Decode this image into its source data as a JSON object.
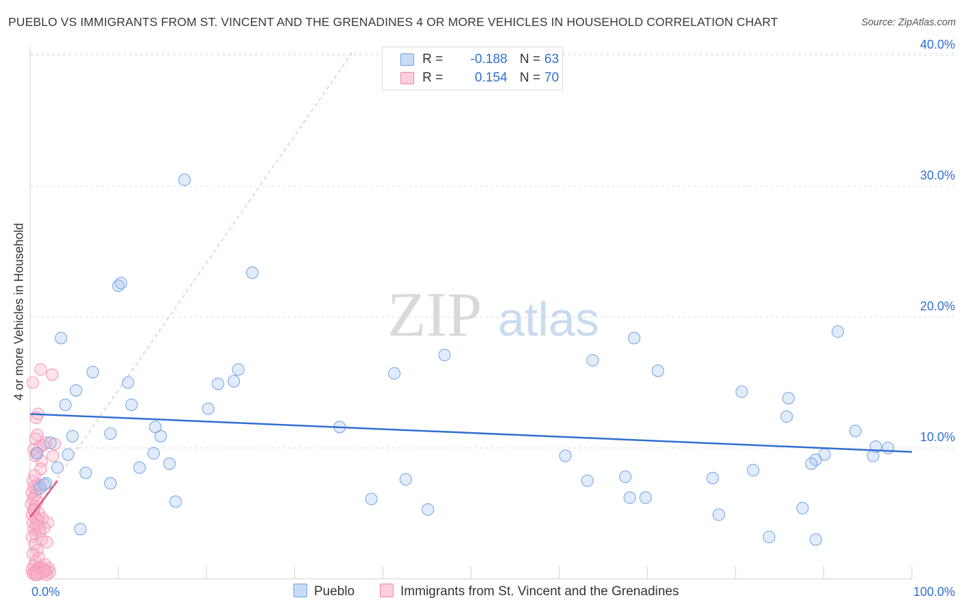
{
  "title": "PUEBLO VS IMMIGRANTS FROM ST. VINCENT AND THE GRENADINES 4 OR MORE VEHICLES IN HOUSEHOLD CORRELATION CHART",
  "source": "Source: ZipAtlas.com",
  "watermark": {
    "zip": "ZIP",
    "atlas": "atlas"
  },
  "legend": {
    "rows": [
      {
        "r_label": "R =",
        "r_value": "-0.188",
        "n_label": "N =",
        "n_value": "63",
        "color": "#6a9fe0"
      },
      {
        "r_label": "R =",
        "r_value": "0.154",
        "n_label": "N =",
        "n_value": "70",
        "color": "#f080a8"
      }
    ]
  },
  "bottom_legend": {
    "series1": "Pueblo",
    "series2": "Immigrants from St. Vincent and the Grenadines"
  },
  "chart_data": {
    "type": "scatter",
    "ylabel": "4 or more Vehicles in Household",
    "xlabel": "",
    "xlim": [
      0,
      100
    ],
    "ylim": [
      0,
      40
    ],
    "x_tick_labels": [
      "0.0%",
      "100.0%"
    ],
    "y_tick_labels": [
      "10.0%",
      "20.0%",
      "30.0%",
      "40.0%"
    ],
    "y_ticks": [
      10,
      20,
      30,
      40
    ],
    "series": [
      {
        "name": "Pueblo",
        "color": "#6a9fe0",
        "trend": {
          "x": [
            0,
            100
          ],
          "y": [
            12.6,
            9.7
          ],
          "color": "#2f6fd0"
        },
        "points": [
          [
            17.5,
            30.5
          ],
          [
            25.2,
            23.4
          ],
          [
            10,
            22.4
          ],
          [
            10.3,
            22.6
          ],
          [
            3.5,
            18.4
          ],
          [
            47,
            17.1
          ],
          [
            68.5,
            18.4
          ],
          [
            91.6,
            18.9
          ],
          [
            63.8,
            16.7
          ],
          [
            7.1,
            15.8
          ],
          [
            23.6,
            16.0
          ],
          [
            41.3,
            15.7
          ],
          [
            71.2,
            15.9
          ],
          [
            11.1,
            15.0
          ],
          [
            21.3,
            14.9
          ],
          [
            23.1,
            15.1
          ],
          [
            5.2,
            14.4
          ],
          [
            80.7,
            14.3
          ],
          [
            86.0,
            13.8
          ],
          [
            4.0,
            13.3
          ],
          [
            11.5,
            13.3
          ],
          [
            20.2,
            13.0
          ],
          [
            85.8,
            12.4
          ],
          [
            35.1,
            11.6
          ],
          [
            14.2,
            11.6
          ],
          [
            93.6,
            11.3
          ],
          [
            9.1,
            11.1
          ],
          [
            4.8,
            10.9
          ],
          [
            14.8,
            10.9
          ],
          [
            2.3,
            10.4
          ],
          [
            95.9,
            10.1
          ],
          [
            97.3,
            10.0
          ],
          [
            0.8,
            9.6
          ],
          [
            4.3,
            9.5
          ],
          [
            14.0,
            9.6
          ],
          [
            60.7,
            9.4
          ],
          [
            90.1,
            9.5
          ],
          [
            95.6,
            9.4
          ],
          [
            89.1,
            9.1
          ],
          [
            88.6,
            8.8
          ],
          [
            15.8,
            8.8
          ],
          [
            12.4,
            8.5
          ],
          [
            3.1,
            8.5
          ],
          [
            6.3,
            8.1
          ],
          [
            82.0,
            8.3
          ],
          [
            67.5,
            7.8
          ],
          [
            77.4,
            7.7
          ],
          [
            42.6,
            7.6
          ],
          [
            63.2,
            7.5
          ],
          [
            9.1,
            7.3
          ],
          [
            1.8,
            7.3
          ],
          [
            1.1,
            6.9
          ],
          [
            68.0,
            6.2
          ],
          [
            69.8,
            6.2
          ],
          [
            38.7,
            6.1
          ],
          [
            16.5,
            5.9
          ],
          [
            87.6,
            5.4
          ],
          [
            45.1,
            5.3
          ],
          [
            78.1,
            4.9
          ],
          [
            5.7,
            3.8
          ],
          [
            83.8,
            3.2
          ],
          [
            89.1,
            3.0
          ],
          [
            1.6,
            7.2
          ]
        ]
      },
      {
        "name": "Immigrants from St. Vincent and the Grenadines",
        "color": "#f080a8",
        "trend": {
          "x": [
            0,
            3.1
          ],
          "y": [
            4.7,
            7.5
          ],
          "color": "#e0557f"
        },
        "trend_dashed": {
          "x": [
            0,
            36.5
          ],
          "y": [
            4.7,
            40.2
          ],
          "color": "#e8a0b5"
        },
        "points": [
          [
            1.2,
            16.0
          ],
          [
            2.5,
            15.6
          ],
          [
            0.3,
            15.0
          ],
          [
            0.9,
            12.6
          ],
          [
            0.7,
            12.3
          ],
          [
            0.8,
            11.0
          ],
          [
            0.6,
            10.7
          ],
          [
            1.8,
            10.4
          ],
          [
            2.8,
            10.3
          ],
          [
            1.5,
            10.2
          ],
          [
            1.1,
            10.1
          ],
          [
            0.4,
            9.9
          ],
          [
            0.7,
            9.6
          ],
          [
            2.6,
            9.4
          ],
          [
            1.3,
            9.0
          ],
          [
            1.2,
            8.4
          ],
          [
            0.5,
            7.9
          ],
          [
            0.3,
            7.5
          ],
          [
            0.9,
            7.2
          ],
          [
            0.4,
            7.0
          ],
          [
            0.7,
            6.8
          ],
          [
            0.2,
            6.6
          ],
          [
            0.6,
            6.4
          ],
          [
            0.3,
            6.1
          ],
          [
            0.8,
            5.9
          ],
          [
            0.1,
            5.7
          ],
          [
            0.5,
            5.5
          ],
          [
            0.4,
            5.2
          ],
          [
            1.0,
            5.0
          ],
          [
            0.2,
            4.9
          ],
          [
            0.6,
            4.7
          ],
          [
            1.4,
            4.6
          ],
          [
            0.9,
            4.5
          ],
          [
            0.3,
            4.3
          ],
          [
            2.0,
            4.3
          ],
          [
            0.7,
            4.1
          ],
          [
            1.6,
            3.9
          ],
          [
            0.4,
            3.8
          ],
          [
            1.1,
            3.6
          ],
          [
            0.6,
            3.4
          ],
          [
            0.2,
            3.2
          ],
          [
            1.3,
            3.0
          ],
          [
            1.9,
            2.8
          ],
          [
            0.5,
            2.6
          ],
          [
            0.8,
            2.2
          ],
          [
            0.3,
            1.9
          ],
          [
            1.0,
            1.6
          ],
          [
            0.6,
            1.3
          ],
          [
            1.7,
            1.1
          ],
          [
            0.4,
            1.0
          ],
          [
            1.2,
            0.9
          ],
          [
            0.9,
            0.8
          ],
          [
            2.1,
            0.8
          ],
          [
            0.2,
            0.7
          ],
          [
            1.5,
            0.7
          ],
          [
            0.7,
            0.6
          ],
          [
            1.8,
            0.6
          ],
          [
            0.5,
            0.5
          ],
          [
            1.1,
            0.5
          ],
          [
            2.2,
            0.5
          ],
          [
            0.3,
            0.4
          ],
          [
            1.4,
            0.4
          ],
          [
            0.8,
            0.3
          ],
          [
            1.9,
            0.3
          ],
          [
            0.6,
            0.3
          ],
          [
            1.6,
            0.6
          ],
          [
            1.0,
            4.0
          ],
          [
            0.4,
            5.3
          ],
          [
            0.6,
            9.4
          ],
          [
            1.2,
            7.1
          ]
        ]
      }
    ]
  }
}
